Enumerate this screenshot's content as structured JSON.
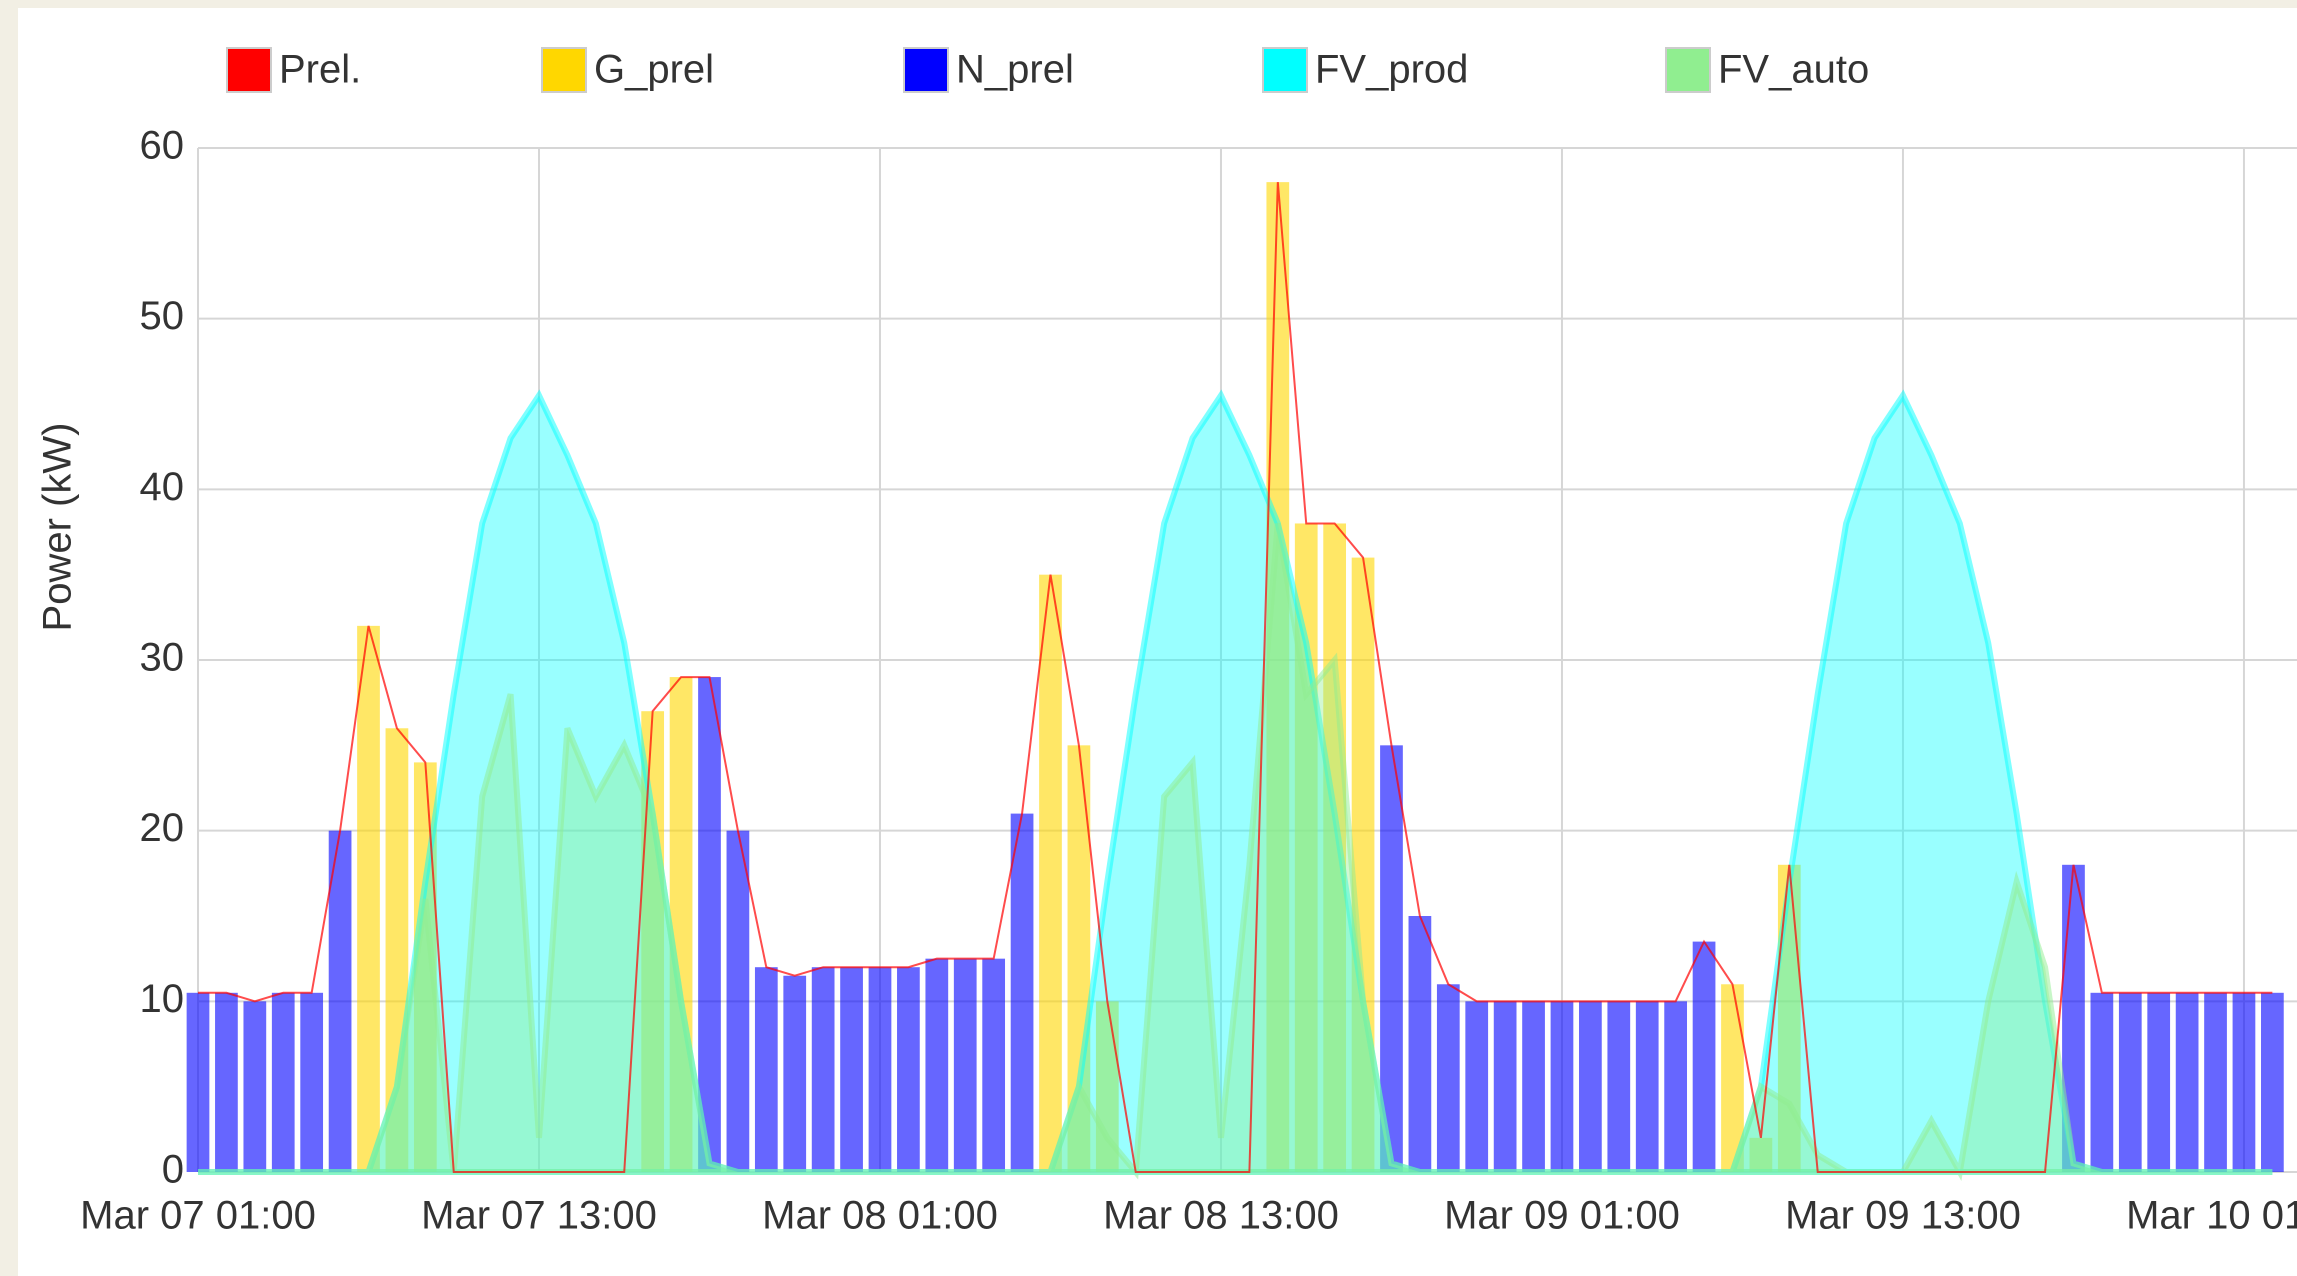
{
  "chart_data": {
    "type": "mixed",
    "y_label": "Power (kW)",
    "ylim": [
      0,
      60
    ],
    "yticks": [
      0,
      10,
      20,
      30,
      40,
      50,
      60
    ],
    "grid": true,
    "xlim": [
      "Mar 07 01:00",
      "Mar 10 02:52"
    ],
    "xticks": [
      "Mar 07 01:00",
      "Mar 07 13:00",
      "Mar 08 01:00",
      "Mar 08 13:00",
      "Mar 09 01:00",
      "Mar 09 13:00",
      "Mar 10 01:00"
    ],
    "x": [
      "Mar 07 01:00",
      "Mar 07 02:00",
      "Mar 07 03:00",
      "Mar 07 04:00",
      "Mar 07 05:00",
      "Mar 07 06:00",
      "Mar 07 07:00",
      "Mar 07 08:00",
      "Mar 07 09:00",
      "Mar 07 10:00",
      "Mar 07 11:00",
      "Mar 07 12:00",
      "Mar 07 13:00",
      "Mar 07 14:00",
      "Mar 07 15:00",
      "Mar 07 16:00",
      "Mar 07 17:00",
      "Mar 07 18:00",
      "Mar 07 19:00",
      "Mar 07 20:00",
      "Mar 07 21:00",
      "Mar 07 22:00",
      "Mar 07 23:00",
      "Mar 08 00:00",
      "Mar 08 01:00",
      "Mar 08 02:00",
      "Mar 08 03:00",
      "Mar 08 04:00",
      "Mar 08 05:00",
      "Mar 08 06:00",
      "Mar 08 07:00",
      "Mar 08 08:00",
      "Mar 08 09:00",
      "Mar 08 10:00",
      "Mar 08 11:00",
      "Mar 08 12:00",
      "Mar 08 13:00",
      "Mar 08 14:00",
      "Mar 08 15:00",
      "Mar 08 16:00",
      "Mar 08 17:00",
      "Mar 08 18:00",
      "Mar 08 19:00",
      "Mar 08 20:00",
      "Mar 08 21:00",
      "Mar 08 22:00",
      "Mar 08 23:00",
      "Mar 09 00:00",
      "Mar 09 01:00",
      "Mar 09 02:00",
      "Mar 09 03:00",
      "Mar 09 04:00",
      "Mar 09 05:00",
      "Mar 09 06:00",
      "Mar 09 07:00",
      "Mar 09 08:00",
      "Mar 09 09:00",
      "Mar 09 10:00",
      "Mar 09 11:00",
      "Mar 09 12:00",
      "Mar 09 13:00",
      "Mar 09 14:00",
      "Mar 09 15:00",
      "Mar 09 16:00",
      "Mar 09 17:00",
      "Mar 09 18:00",
      "Mar 09 19:00",
      "Mar 09 20:00",
      "Mar 09 21:00",
      "Mar 09 22:00",
      "Mar 09 23:00",
      "Mar 10 00:00",
      "Mar 10 01:00",
      "Mar 10 02:00"
    ],
    "series": [
      {
        "name": "Prel.",
        "color": "#ff0000",
        "kind": "line",
        "values": [
          10.5,
          10.5,
          10,
          10.5,
          10.5,
          20,
          32,
          26,
          24,
          0,
          0,
          0,
          0,
          0,
          0,
          0,
          27,
          29,
          29,
          20,
          12,
          11.5,
          12,
          12,
          12,
          12,
          12.5,
          12.5,
          12.5,
          21,
          35,
          25,
          10,
          0,
          0,
          0,
          0,
          0,
          58,
          38,
          38,
          36,
          25,
          15,
          11,
          10,
          10,
          10,
          10,
          10,
          10,
          10,
          10,
          13.5,
          11,
          2,
          18,
          0,
          0,
          0,
          0,
          0,
          0,
          0,
          0,
          0,
          18,
          10.5,
          10.5,
          10.5,
          10.5,
          10.5,
          10.5,
          10.5
        ]
      },
      {
        "name": "G_prel",
        "color": "#ffd700",
        "kind": "bar",
        "values": [
          0,
          0,
          0,
          0,
          0,
          0,
          32,
          26,
          24,
          0,
          0,
          0,
          0,
          0,
          0,
          0,
          27,
          29,
          0,
          0,
          0,
          0,
          0,
          0,
          0,
          0,
          0,
          0,
          0,
          0,
          35,
          25,
          10,
          0,
          0,
          0,
          0,
          0,
          58,
          38,
          38,
          36,
          0,
          0,
          0,
          0,
          0,
          0,
          0,
          0,
          0,
          0,
          0,
          0,
          11,
          2,
          18,
          0,
          0,
          0,
          0,
          0,
          0,
          0,
          0,
          0,
          0,
          0,
          0,
          0,
          0,
          0,
          0,
          0
        ]
      },
      {
        "name": "N_prel",
        "color": "#0000ff",
        "kind": "bar",
        "values": [
          10.5,
          10.5,
          10,
          10.5,
          10.5,
          20,
          0,
          0,
          0,
          0,
          0,
          0,
          0,
          0,
          0,
          0,
          0,
          0,
          29,
          20,
          12,
          11.5,
          12,
          12,
          12,
          12,
          12.5,
          12.5,
          12.5,
          21,
          0,
          0,
          0,
          0,
          0,
          0,
          0,
          0,
          0,
          0,
          0,
          0,
          25,
          15,
          11,
          10,
          10,
          10,
          10,
          10,
          10,
          10,
          10,
          13.5,
          0,
          0,
          0,
          0,
          0,
          0,
          0,
          0,
          0,
          0,
          0,
          0,
          18,
          10.5,
          10.5,
          10.5,
          10.5,
          10.5,
          10.5,
          10.5
        ]
      },
      {
        "name": "FV_prod",
        "color": "#00ffff",
        "kind": "area",
        "values": [
          0,
          0,
          0,
          0,
          0,
          0,
          0,
          5,
          17,
          28,
          38,
          43,
          45.5,
          42,
          38,
          31,
          21,
          10,
          0.5,
          0,
          0,
          0,
          0,
          0,
          0,
          0,
          0,
          0,
          0,
          0,
          0,
          5,
          17,
          28,
          38,
          43,
          45.5,
          42,
          38,
          31,
          21,
          10,
          0.5,
          0,
          0,
          0,
          0,
          0,
          0,
          0,
          0,
          0,
          0,
          0,
          0,
          5,
          17,
          28,
          38,
          43,
          45.5,
          42,
          38,
          31,
          21,
          10,
          0.5,
          0,
          0,
          0,
          0,
          0,
          0,
          0
        ]
      },
      {
        "name": "FV_auto",
        "color": "#90ee90",
        "kind": "area",
        "values": [
          0,
          0,
          0,
          0,
          0,
          0,
          0,
          5,
          16,
          0,
          22,
          28,
          2,
          26,
          22,
          25,
          21,
          10,
          0.5,
          0,
          0,
          0,
          0,
          0,
          0,
          0,
          0,
          0,
          0,
          0,
          0,
          5,
          2,
          0,
          22,
          24,
          2,
          18,
          38,
          28,
          30,
          10,
          0.5,
          0,
          0,
          0,
          0,
          0,
          0,
          0,
          0,
          0,
          0,
          0,
          0,
          5,
          4,
          1,
          0,
          0,
          0,
          3,
          0,
          10,
          17,
          12,
          0.5,
          0,
          0,
          0,
          0,
          0,
          0,
          0
        ]
      }
    ]
  }
}
